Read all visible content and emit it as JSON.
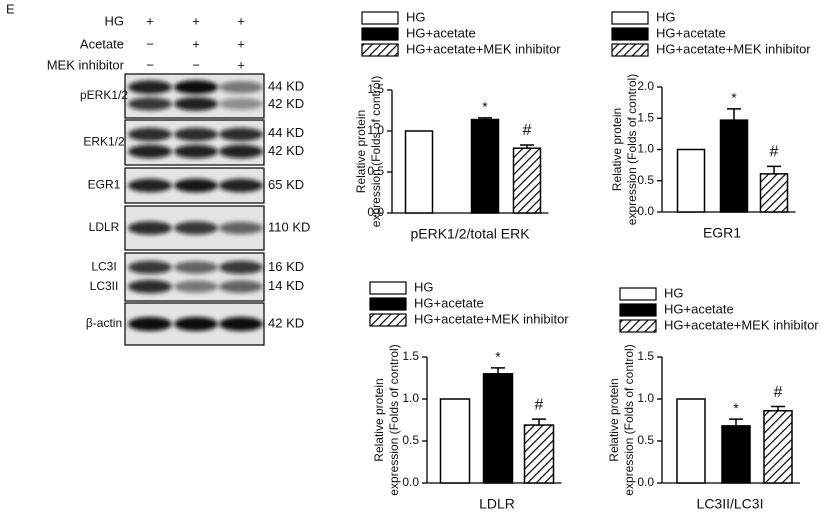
{
  "panel_label": "E",
  "blot": {
    "treatments": [
      {
        "name": "HG",
        "lanes": [
          "+",
          "+",
          "+"
        ]
      },
      {
        "name": "Acetate",
        "lanes": [
          "−",
          "+",
          "+"
        ]
      },
      {
        "name": "MEK inhibitor",
        "lanes": [
          "−",
          "−",
          "+"
        ]
      }
    ],
    "rows": [
      {
        "labels": [
          "pERK1/2"
        ],
        "sizes": [
          "44 KD",
          "42 KD"
        ]
      },
      {
        "labels": [
          "ERK1/2"
        ],
        "sizes": [
          "44 KD",
          "42 KD"
        ]
      },
      {
        "labels": [
          "EGR1"
        ],
        "sizes": [
          "65 KD"
        ]
      },
      {
        "labels": [
          "LDLR"
        ],
        "sizes": [
          "110 KD"
        ]
      },
      {
        "labels": [
          "LC3I",
          "LC3II"
        ],
        "sizes": [
          "16 KD",
          "14 KD"
        ]
      },
      {
        "labels": [
          "β-actin"
        ],
        "sizes": [
          "42 KD"
        ]
      }
    ]
  },
  "chart_data": [
    {
      "type": "bar",
      "xlabel": "pERK1/2/total ERK",
      "ylabel": [
        "Relative protein",
        "expression (Folds of control)"
      ],
      "ylim": [
        0,
        1.5
      ],
      "yticks": [
        {
          "value": 0,
          "label": "0.0"
        },
        0.5,
        {
          "value": 1,
          "label": "1.0"
        },
        1.5
      ],
      "series": [
        {
          "name": "HG",
          "color": "#ffffff",
          "values": [
            1.0
          ],
          "errors": [
            0
          ]
        },
        {
          "name": "HG+acetate",
          "color": "#000000",
          "values": [
            1.14
          ],
          "errors": [
            0.02
          ],
          "annotation": "*"
        },
        {
          "name": "HG+acetate+MEK inhibitor",
          "color": "#000000",
          "hatch": true,
          "values": [
            0.79
          ],
          "errors": [
            0.04
          ],
          "annotation": "#"
        }
      ]
    },
    {
      "type": "bar",
      "xlabel": "EGR1",
      "ylabel": [
        "Relative protein",
        "expression (Folds of control)"
      ],
      "ylim": [
        0,
        2
      ],
      "yticks": [
        {
          "value": 0,
          "label": "0.0"
        },
        0.5,
        {
          "value": 1,
          "label": "1.0"
        },
        1.5,
        {
          "value": 2,
          "label": "2.0"
        }
      ],
      "series": [
        {
          "name": "HG",
          "color": "#ffffff",
          "values": [
            1.0
          ],
          "errors": [
            0
          ]
        },
        {
          "name": "HG+acetate",
          "color": "#000000",
          "values": [
            1.47
          ],
          "errors": [
            0.18
          ],
          "annotation": "*"
        },
        {
          "name": "HG+acetate+MEK inhibitor",
          "color": "#000000",
          "hatch": true,
          "values": [
            0.61
          ],
          "errors": [
            0.12
          ],
          "annotation": "#"
        }
      ]
    },
    {
      "type": "bar",
      "xlabel": "LDLR",
      "ylabel": [
        "Relative protein",
        "expression (Folds of control)"
      ],
      "ylim": [
        0,
        1.5
      ],
      "yticks": [
        {
          "value": 0,
          "label": "0.0"
        },
        0.5,
        {
          "value": 1,
          "label": "1.0"
        },
        1.5
      ],
      "series": [
        {
          "name": "HG",
          "color": "#ffffff",
          "values": [
            1.0
          ],
          "errors": [
            0
          ]
        },
        {
          "name": "HG+acetate",
          "color": "#000000",
          "values": [
            1.3
          ],
          "errors": [
            0.07
          ],
          "annotation": "*"
        },
        {
          "name": "HG+acetate+MEK inhibitor",
          "color": "#000000",
          "hatch": true,
          "values": [
            0.69
          ],
          "errors": [
            0.07
          ],
          "annotation": "#"
        }
      ]
    },
    {
      "type": "bar",
      "xlabel": "LC3II/LC3I",
      "ylabel": [
        "Relative protein",
        "expression (Folds of control)"
      ],
      "ylim": [
        0,
        1.5
      ],
      "yticks": [
        {
          "value": 0,
          "label": "0.0"
        },
        0.5,
        {
          "value": 1,
          "label": "1.0"
        },
        1.5
      ],
      "series": [
        {
          "name": "HG",
          "color": "#ffffff",
          "values": [
            1.0
          ],
          "errors": [
            0
          ]
        },
        {
          "name": "HG+acetate",
          "color": "#000000",
          "values": [
            0.68
          ],
          "errors": [
            0.08
          ],
          "annotation": "*"
        },
        {
          "name": "HG+acetate+MEK inhibitor",
          "color": "#000000",
          "hatch": true,
          "values": [
            0.86
          ],
          "errors": [
            0.05
          ],
          "annotation": "#"
        }
      ]
    }
  ]
}
